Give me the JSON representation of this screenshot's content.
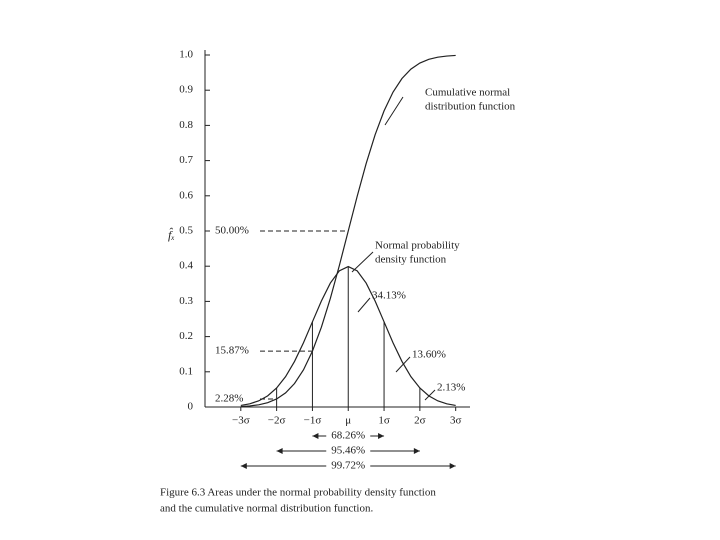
{
  "chart_data": {
    "type": "line",
    "y_label": "f̂ₓ",
    "x": [
      -3,
      -2.75,
      -2.5,
      -2.25,
      -2,
      -1.75,
      -1.5,
      -1.25,
      -1,
      -0.75,
      -0.5,
      -0.25,
      0,
      0.25,
      0.5,
      0.75,
      1,
      1.25,
      1.5,
      1.75,
      2,
      2.25,
      2.5,
      2.75,
      3
    ],
    "series": [
      {
        "name": "Normal probability density function",
        "color": "#222",
        "values": [
          0.0044,
          0.0091,
          0.0175,
          0.0317,
          0.054,
          0.0863,
          0.1295,
          0.1826,
          0.242,
          0.3011,
          0.3521,
          0.3867,
          0.3989,
          0.3867,
          0.3521,
          0.3011,
          0.242,
          0.1826,
          0.1295,
          0.0863,
          0.054,
          0.0317,
          0.0175,
          0.0091,
          0.0044
        ]
      },
      {
        "name": "Cumulative normal distribution function",
        "color": "#222",
        "values": [
          0.0013,
          0.003,
          0.0062,
          0.0122,
          0.0228,
          0.0401,
          0.0668,
          0.1056,
          0.1587,
          0.2266,
          0.3085,
          0.4013,
          0.5,
          0.5987,
          0.6915,
          0.7734,
          0.8413,
          0.8944,
          0.9332,
          0.9599,
          0.9772,
          0.9878,
          0.9938,
          0.997,
          0.9987
        ]
      }
    ],
    "xlim": [
      -4,
      3.4
    ],
    "xticks": [
      {
        "value": -3,
        "label": "−3σ"
      },
      {
        "value": -2,
        "label": "−2σ"
      },
      {
        "value": -1,
        "label": "−1σ"
      },
      {
        "value": 0,
        "label": "μ"
      },
      {
        "value": 1,
        "label": "1σ"
      },
      {
        "value": 2,
        "label": "2σ"
      },
      {
        "value": 3,
        "label": "3σ"
      }
    ],
    "ylim": [
      0,
      1
    ],
    "yticks": [
      0,
      0.1,
      0.2,
      0.3,
      0.4,
      0.5,
      0.6,
      0.7,
      0.8,
      0.9,
      {
        "value": 1,
        "label": "1.0"
      }
    ],
    "annotations": [
      "Cumulative normal",
      "distribution function",
      "Normal probability",
      "density function",
      "34.13%",
      "13.60%",
      "2.13%",
      "50.00%",
      "15.87%",
      "2.28%"
    ],
    "spans": [
      "68.26%",
      "95.46%",
      "99.72%"
    ],
    "caption": [
      "Figure 6.3    Areas under the normal probability density function",
      "and the cumulative normal distribution function."
    ]
  }
}
